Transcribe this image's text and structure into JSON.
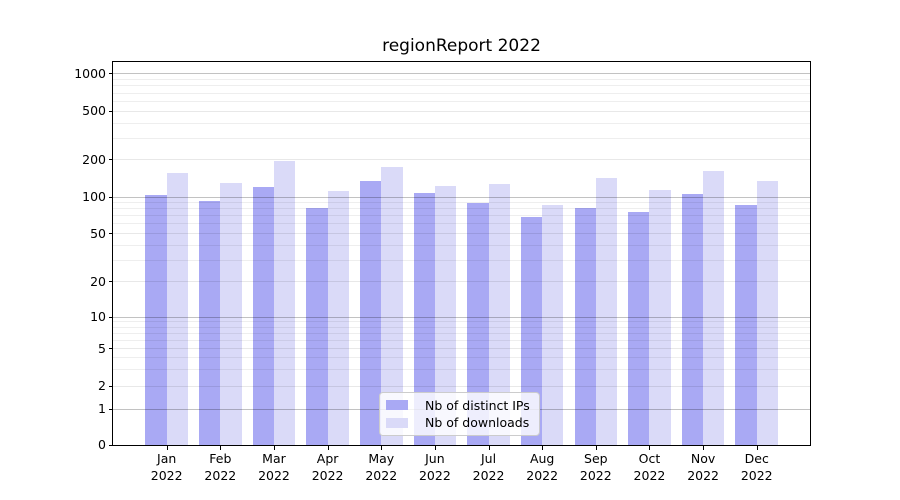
{
  "chart_data": {
    "type": "bar",
    "title": "regionReport 2022",
    "year": "2022",
    "categories": [
      "Jan",
      "Feb",
      "Mar",
      "Apr",
      "May",
      "Jun",
      "Jul",
      "Aug",
      "Sep",
      "Oct",
      "Nov",
      "Dec"
    ],
    "series": [
      {
        "name": "Nb of distinct IPs",
        "color": "#a9a9f4",
        "values": [
          104,
          92,
          120,
          80,
          135,
          108,
          88,
          68,
          80,
          75,
          106,
          85
        ]
      },
      {
        "name": "Nb of downloads",
        "color": "#dadaf8",
        "values": [
          155,
          130,
          195,
          112,
          175,
          122,
          126,
          85,
          142,
          113,
          160,
          135
        ]
      }
    ],
    "y_ticks": [
      0,
      1,
      2,
      5,
      10,
      20,
      50,
      100,
      200,
      500,
      1000
    ],
    "yscale": "symlog",
    "ylim": [
      0,
      1235
    ],
    "grid": "both",
    "legend_position": "lower center",
    "colors": {
      "bar_dark": "#a9a9f4",
      "bar_light": "#dadaf8",
      "grid_major": "rgba(0,0,0,0.24)",
      "grid_minor": "rgba(0,0,0,0.065)",
      "axis": "#000000",
      "background": "#ffffff"
    }
  }
}
